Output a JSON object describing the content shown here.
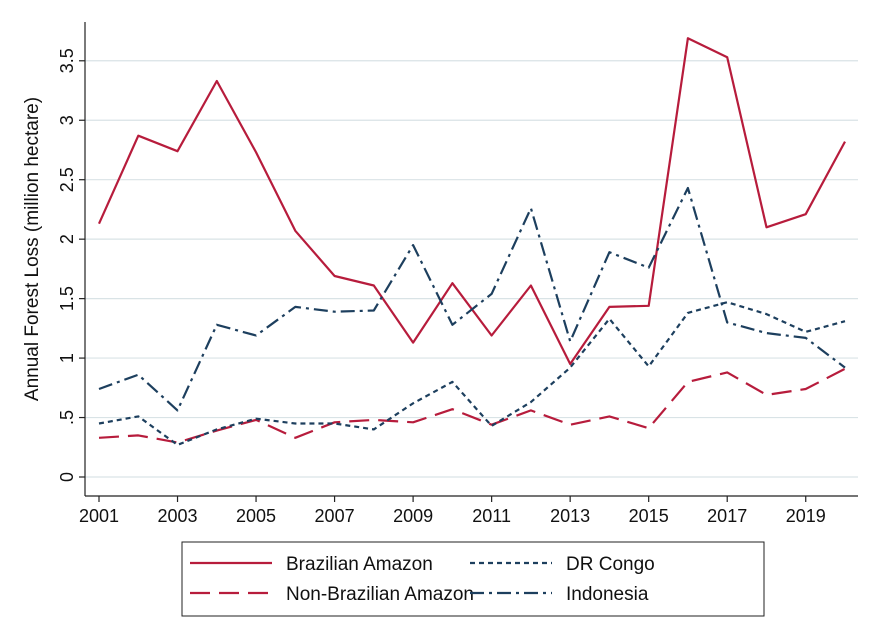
{
  "chart_data": {
    "type": "line",
    "title": "",
    "xlabel": "",
    "ylabel": "Annual Forest Loss (million hectare)",
    "x": [
      2001,
      2002,
      2003,
      2004,
      2005,
      2006,
      2007,
      2008,
      2009,
      2010,
      2011,
      2012,
      2013,
      2014,
      2015,
      2016,
      2017,
      2018,
      2019,
      2020
    ],
    "xlim": [
      2001,
      2020
    ],
    "ylim": [
      0,
      3.7
    ],
    "x_ticks": [
      2001,
      2003,
      2005,
      2007,
      2009,
      2011,
      2013,
      2015,
      2017,
      2019
    ],
    "x_tick_labels": [
      "2001",
      "2003",
      "2005",
      "2007",
      "2009",
      "2011",
      "2013",
      "2015",
      "2017",
      "2019"
    ],
    "y_ticks": [
      0,
      0.5,
      1,
      1.5,
      2,
      2.5,
      3,
      3.5
    ],
    "y_tick_labels": [
      "0",
      ".5",
      "1",
      "1.5",
      "2",
      "2.5",
      "3",
      "3.5"
    ],
    "grid": "horizontal",
    "legend_position": "bottom",
    "series": [
      {
        "name": "Brazilian Amazon",
        "color": "#b71c3c",
        "dash": "solid",
        "values": [
          2.13,
          2.87,
          2.74,
          3.33,
          2.73,
          2.07,
          1.69,
          1.61,
          1.13,
          1.63,
          1.19,
          1.61,
          0.95,
          1.43,
          1.44,
          3.69,
          3.53,
          2.1,
          2.21,
          2.82
        ]
      },
      {
        "name": "Non-Brazilian Amazon",
        "color": "#b71c3c",
        "dash": "long-dash",
        "values": [
          0.33,
          0.35,
          0.29,
          0.39,
          0.48,
          0.33,
          0.46,
          0.48,
          0.46,
          0.57,
          0.44,
          0.56,
          0.44,
          0.51,
          0.41,
          0.8,
          0.88,
          0.69,
          0.74,
          0.91
        ]
      },
      {
        "name": "DR Congo",
        "color": "#1d3f5e",
        "dash": "short-dash",
        "values": [
          0.45,
          0.51,
          0.27,
          0.4,
          0.49,
          0.45,
          0.45,
          0.4,
          0.62,
          0.8,
          0.43,
          0.63,
          0.92,
          1.33,
          0.93,
          1.38,
          1.47,
          1.37,
          1.22,
          1.31
        ]
      },
      {
        "name": "Indonesia",
        "color": "#1d3f5e",
        "dash": "dash-dot",
        "values": [
          0.74,
          0.86,
          0.56,
          1.28,
          1.19,
          1.43,
          1.39,
          1.4,
          1.95,
          1.28,
          1.54,
          2.26,
          1.14,
          1.89,
          1.76,
          2.43,
          1.3,
          1.21,
          1.17,
          0.92
        ]
      }
    ]
  },
  "colors": {
    "background": "#ffffff",
    "grid": "#d9e3e6",
    "axis": "#222222"
  }
}
